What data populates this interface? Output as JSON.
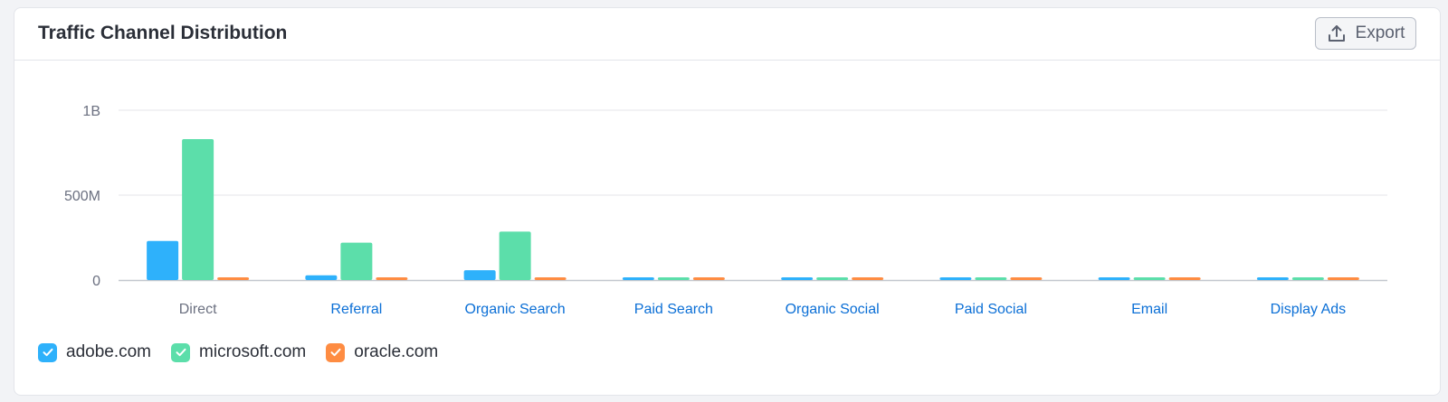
{
  "card": {
    "title": "Traffic Channel Distribution",
    "export_label": "Export"
  },
  "colors": {
    "adobe": "#2eb1fb",
    "microsoft": "#5cdeaa",
    "oracle": "#fe8c42",
    "grid": "#e4e6ea",
    "axis": "#c3c7ce",
    "link": "#0b6fd6",
    "tick": "#6b7080"
  },
  "chart_data": {
    "type": "bar",
    "title": "",
    "xlabel": "",
    "ylabel": "",
    "ylim": [
      0,
      1000000000
    ],
    "y_ticks": [
      {
        "value": 0,
        "label": "0"
      },
      {
        "value": 500000000,
        "label": "500M"
      },
      {
        "value": 1000000000,
        "label": "1B"
      }
    ],
    "categories": [
      "Direct",
      "Referral",
      "Organic Search",
      "Paid Search",
      "Organic Social",
      "Paid Social",
      "Email",
      "Display Ads"
    ],
    "category_is_link": [
      false,
      true,
      true,
      true,
      true,
      true,
      true,
      true
    ],
    "series": [
      {
        "name": "adobe.com",
        "color_key": "adobe",
        "values": [
          230000000,
          28000000,
          58000000,
          7000000,
          6000000,
          5000000,
          5000000,
          6000000
        ]
      },
      {
        "name": "microsoft.com",
        "color_key": "microsoft",
        "values": [
          830000000,
          220000000,
          285000000,
          8000000,
          10000000,
          6000000,
          7000000,
          6000000
        ]
      },
      {
        "name": "oracle.com",
        "color_key": "oracle",
        "values": [
          9000000,
          8000000,
          8000000,
          6000000,
          6000000,
          5000000,
          5000000,
          5000000
        ]
      }
    ],
    "grid": true,
    "legend_position": "bottom-left"
  },
  "legend": {
    "items": [
      {
        "label": "adobe.com",
        "color_key": "adobe",
        "checked": true
      },
      {
        "label": "microsoft.com",
        "color_key": "microsoft",
        "checked": true
      },
      {
        "label": "oracle.com",
        "color_key": "oracle",
        "checked": true
      }
    ]
  }
}
